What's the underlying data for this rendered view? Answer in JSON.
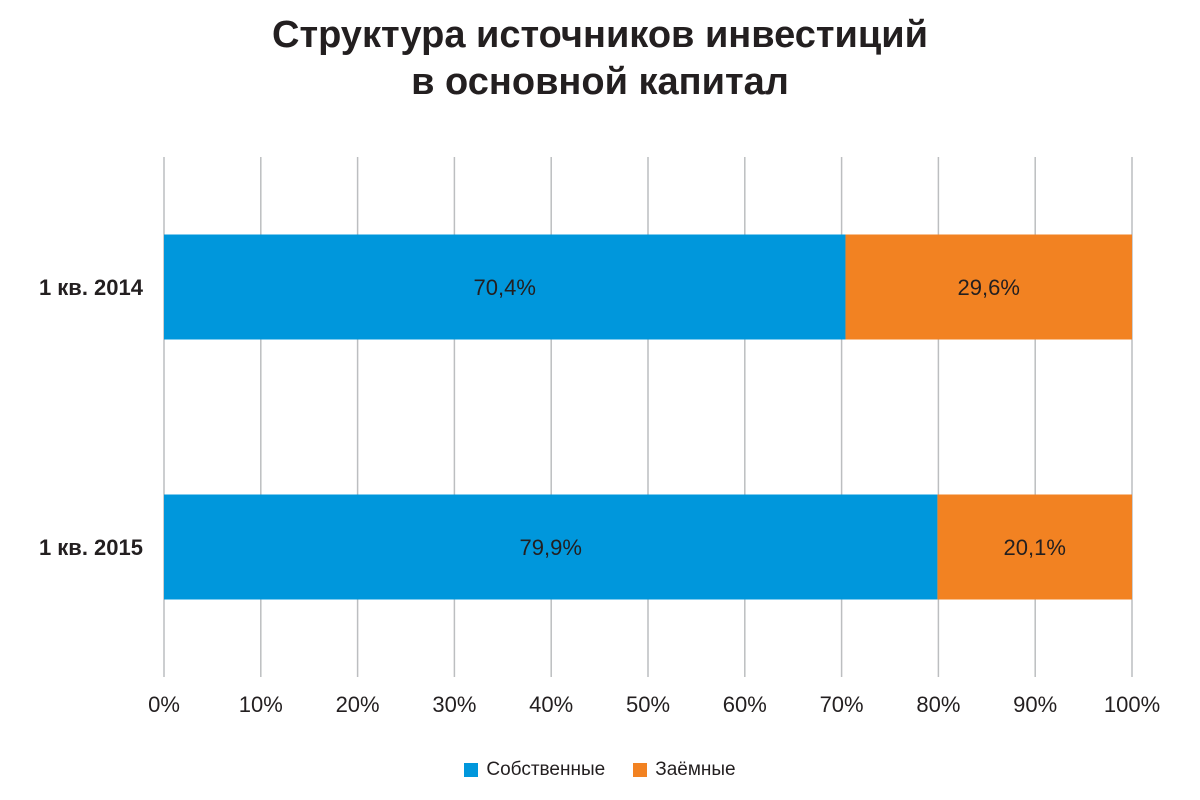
{
  "chart_data": {
    "type": "bar",
    "orientation": "horizontal",
    "stacked": true,
    "title_lines": [
      "Структура источников инвестиций",
      "в основной капитал"
    ],
    "categories": [
      "1 кв. 2014",
      "1 кв. 2015"
    ],
    "series": [
      {
        "name": "Собственные",
        "color": "#0097dc",
        "values": [
          70.4,
          79.9
        ],
        "labels": [
          "70,4%",
          "79,9%"
        ]
      },
      {
        "name": "Заёмные",
        "color": "#f28222",
        "values": [
          29.6,
          20.1
        ],
        "labels": [
          "29,6%",
          "20,1%"
        ]
      }
    ],
    "xlim": [
      0,
      100
    ],
    "x_ticks": [
      "0%",
      "10%",
      "20%",
      "30%",
      "40%",
      "50%",
      "60%",
      "70%",
      "80%",
      "90%",
      "100%"
    ],
    "grid": true,
    "legend_position": "bottom"
  }
}
